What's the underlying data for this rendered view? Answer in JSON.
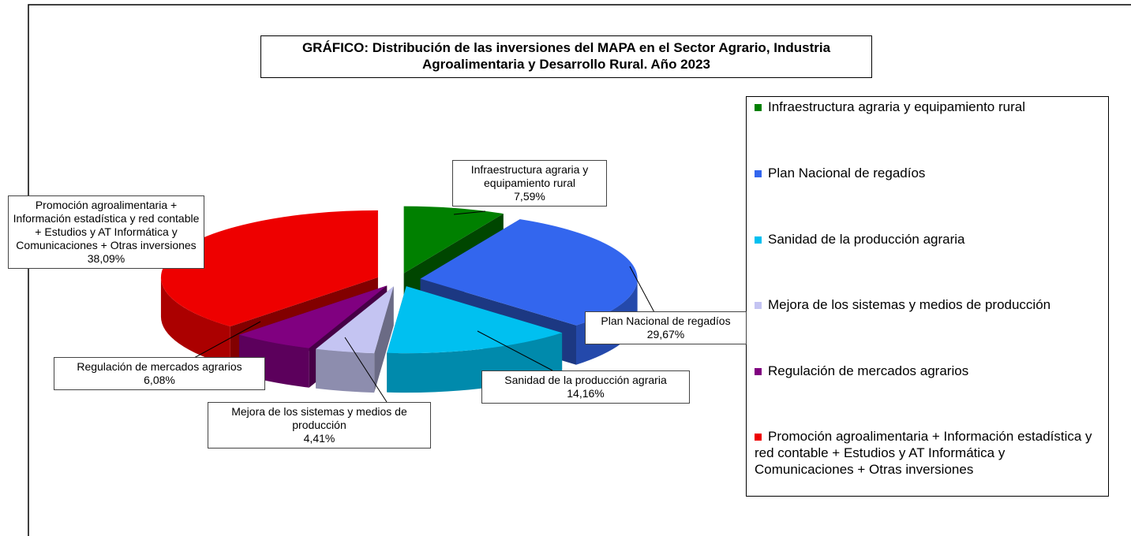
{
  "chart_data": {
    "type": "pie3d",
    "title": "GRÁFICO: Distribución de las inversiones del MAPA en el Sector Agrario, Industria Agroalimentaria y Desarrollo Rural. Año 2023",
    "categories": [
      "Infraestructura agraria y equipamiento rural",
      "Plan Nacional de regadíos",
      "Sanidad de la producción agraria",
      "Mejora de los sistemas y medios de producción",
      "Regulación de mercados agrarios",
      "Promoción agroalimentaria +  Información estadística y red contable +  Estudios y AT Informática y Comunicaciones +  Otras inversiones"
    ],
    "values": [
      7.59,
      29.67,
      14.16,
      4.41,
      6.08,
      38.09
    ],
    "value_labels": [
      "7,59%",
      "29,67%",
      "14,16%",
      "4,41%",
      "6,08%",
      "38,09%"
    ],
    "colors": [
      "#008000",
      "#3366ee",
      "#00c0f0",
      "#c4c4f2",
      "#800080",
      "#ee0000"
    ],
    "legend": "right"
  }
}
